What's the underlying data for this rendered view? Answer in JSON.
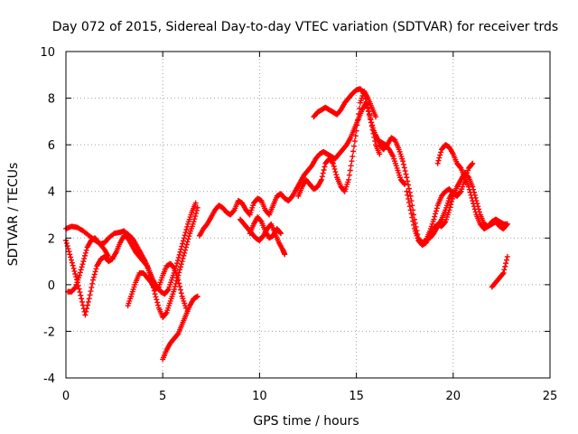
{
  "chart_data": {
    "type": "scatter",
    "title": "Day 072 of 2015, Sidereal Day-to-day VTEC variation (SDTVAR) for receiver trds",
    "xlabel": "GPS time / hours",
    "ylabel": "SDTVAR / TECUs",
    "xlim": [
      0,
      25
    ],
    "ylim": [
      -4,
      10
    ],
    "xticks": [
      0,
      5,
      10,
      15,
      20,
      25
    ],
    "yticks": [
      -4,
      -2,
      0,
      2,
      4,
      6,
      8,
      10
    ],
    "xtick_labels": [
      "0",
      "5",
      "10",
      "15",
      "20",
      "25"
    ],
    "ytick_labels": [
      "-4",
      "-2",
      "0",
      "2",
      "4",
      "6",
      "8",
      "10"
    ],
    "grid": true,
    "legend": "none",
    "marker": "plus",
    "color": "#ff0000",
    "series": [
      {
        "points": [
          [
            0.0,
            2.4
          ],
          [
            0.3,
            2.5
          ],
          [
            0.6,
            2.45
          ],
          [
            0.9,
            2.3
          ],
          [
            1.2,
            2.1
          ],
          [
            1.5,
            1.9
          ],
          [
            1.8,
            1.75
          ],
          [
            2.0,
            1.8
          ],
          [
            2.2,
            2.0
          ],
          [
            2.5,
            2.2
          ],
          [
            2.8,
            2.25
          ],
          [
            3.0,
            2.3
          ],
          [
            3.3,
            2.1
          ],
          [
            3.5,
            1.9
          ],
          [
            3.7,
            1.6
          ],
          [
            3.9,
            1.3
          ],
          [
            4.1,
            1.0
          ],
          [
            4.3,
            0.6
          ],
          [
            4.5,
            0.2
          ],
          [
            4.7,
            -0.1
          ],
          [
            4.9,
            -0.3
          ],
          [
            5.1,
            -0.4
          ],
          [
            5.3,
            -0.2
          ],
          [
            5.5,
            0.3
          ],
          [
            5.7,
            0.8
          ],
          [
            5.9,
            1.4
          ],
          [
            6.1,
            2.0
          ],
          [
            6.3,
            2.6
          ],
          [
            6.5,
            3.1
          ],
          [
            6.7,
            3.5
          ]
        ]
      },
      {
        "points": [
          [
            0.0,
            1.9
          ],
          [
            0.2,
            1.3
          ],
          [
            0.4,
            0.7
          ],
          [
            0.6,
            0.1
          ],
          [
            0.8,
            -0.6
          ],
          [
            1.0,
            -1.3
          ],
          [
            1.2,
            -0.6
          ],
          [
            1.4,
            0.2
          ],
          [
            1.6,
            0.8
          ],
          [
            1.8,
            1.1
          ],
          [
            2.0,
            1.2
          ],
          [
            2.2,
            1.0
          ],
          [
            2.4,
            1.1
          ],
          [
            2.6,
            1.4
          ],
          [
            2.8,
            1.8
          ],
          [
            3.0,
            2.1
          ],
          [
            3.2,
            2.0
          ],
          [
            3.4,
            1.7
          ],
          [
            3.6,
            1.4
          ],
          [
            3.8,
            1.2
          ],
          [
            4.0,
            1.0
          ],
          [
            4.2,
            0.8
          ],
          [
            4.4,
            0.3
          ],
          [
            4.6,
            -0.4
          ],
          [
            4.8,
            -1.0
          ],
          [
            5.0,
            -1.4
          ],
          [
            5.2,
            -1.2
          ],
          [
            5.4,
            -0.7
          ],
          [
            5.6,
            -0.2
          ],
          [
            5.8,
            0.4
          ],
          [
            6.0,
            1.0
          ],
          [
            6.2,
            1.6
          ],
          [
            6.4,
            2.2
          ],
          [
            6.6,
            2.7
          ],
          [
            6.8,
            3.3
          ]
        ]
      },
      {
        "points": [
          [
            0.1,
            -0.3
          ],
          [
            0.3,
            -0.3
          ],
          [
            0.5,
            -0.1
          ],
          [
            0.7,
            0.4
          ],
          [
            0.9,
            1.0
          ],
          [
            1.1,
            1.6
          ],
          [
            1.3,
            1.9
          ],
          [
            1.5,
            2.0
          ],
          [
            1.7,
            1.8
          ],
          [
            2.0,
            1.5
          ],
          [
            2.2,
            1.2
          ]
        ]
      },
      {
        "points": [
          [
            3.2,
            -0.9
          ],
          [
            3.4,
            -0.4
          ],
          [
            3.6,
            0.1
          ],
          [
            3.8,
            0.5
          ],
          [
            4.0,
            0.5
          ],
          [
            4.2,
            0.3
          ],
          [
            4.4,
            0.1
          ],
          [
            4.6,
            -0.2
          ],
          [
            4.8,
            -0.1
          ],
          [
            5.0,
            0.4
          ],
          [
            5.2,
            0.8
          ],
          [
            5.4,
            0.9
          ],
          [
            5.6,
            0.7
          ],
          [
            5.8,
            0.2
          ],
          [
            6.0,
            -0.5
          ],
          [
            6.2,
            -1.0
          ]
        ]
      },
      {
        "points": [
          [
            5.0,
            -3.2
          ],
          [
            5.2,
            -2.8
          ],
          [
            5.4,
            -2.5
          ],
          [
            5.6,
            -2.3
          ],
          [
            5.8,
            -2.1
          ],
          [
            6.0,
            -1.7
          ],
          [
            6.2,
            -1.3
          ],
          [
            6.4,
            -0.9
          ],
          [
            6.6,
            -0.6
          ],
          [
            6.8,
            -0.5
          ]
        ]
      },
      {
        "points": [
          [
            6.9,
            2.1
          ],
          [
            7.1,
            2.4
          ],
          [
            7.3,
            2.6
          ],
          [
            7.5,
            2.9
          ],
          [
            7.7,
            3.2
          ],
          [
            7.9,
            3.4
          ],
          [
            8.1,
            3.3
          ],
          [
            8.3,
            3.1
          ],
          [
            8.5,
            3.0
          ],
          [
            8.7,
            3.2
          ],
          [
            8.9,
            3.6
          ],
          [
            9.1,
            3.5
          ],
          [
            9.3,
            3.2
          ],
          [
            9.5,
            3.0
          ],
          [
            9.7,
            3.5
          ],
          [
            9.9,
            3.7
          ],
          [
            10.1,
            3.6
          ],
          [
            10.3,
            3.2
          ],
          [
            10.5,
            3.0
          ],
          [
            10.7,
            3.4
          ],
          [
            10.9,
            3.8
          ],
          [
            11.1,
            3.9
          ],
          [
            11.3,
            3.7
          ],
          [
            11.5,
            3.6
          ],
          [
            11.7,
            3.8
          ],
          [
            11.9,
            4.1
          ],
          [
            12.1,
            4.4
          ],
          [
            12.3,
            4.7
          ],
          [
            12.5,
            4.9
          ],
          [
            12.7,
            5.1
          ],
          [
            12.9,
            5.4
          ],
          [
            13.1,
            5.6
          ],
          [
            13.3,
            5.7
          ],
          [
            13.5,
            5.6
          ],
          [
            13.7,
            5.5
          ],
          [
            13.9,
            5.4
          ],
          [
            14.1,
            5.6
          ],
          [
            14.3,
            5.8
          ],
          [
            14.5,
            6.0
          ],
          [
            14.7,
            6.3
          ],
          [
            14.9,
            6.7
          ],
          [
            15.1,
            7.1
          ],
          [
            15.3,
            7.5
          ],
          [
            15.5,
            7.8
          ],
          [
            15.7,
            7.2
          ],
          [
            15.9,
            6.6
          ],
          [
            16.1,
            6.2
          ],
          [
            16.3,
            6.1
          ],
          [
            16.5,
            6.0
          ],
          [
            16.7,
            5.8
          ],
          [
            16.9,
            5.5
          ],
          [
            17.1,
            5.0
          ],
          [
            17.3,
            4.5
          ],
          [
            17.5,
            4.3
          ]
        ]
      },
      {
        "points": [
          [
            9.0,
            2.8
          ],
          [
            9.2,
            2.6
          ],
          [
            9.4,
            2.4
          ],
          [
            9.6,
            2.2
          ],
          [
            9.8,
            2.0
          ],
          [
            10.0,
            1.9
          ],
          [
            10.2,
            2.1
          ],
          [
            10.4,
            2.4
          ],
          [
            10.6,
            2.6
          ],
          [
            10.8,
            2.2
          ],
          [
            11.0,
            1.8
          ],
          [
            11.2,
            1.5
          ],
          [
            11.3,
            1.3
          ]
        ]
      },
      {
        "points": [
          [
            9.5,
            2.2
          ],
          [
            9.7,
            2.6
          ],
          [
            9.9,
            2.9
          ],
          [
            10.1,
            2.7
          ],
          [
            10.3,
            2.3
          ],
          [
            10.5,
            2.0
          ],
          [
            10.7,
            2.1
          ],
          [
            10.9,
            2.4
          ],
          [
            11.1,
            2.2
          ]
        ]
      },
      {
        "points": [
          [
            12.0,
            3.8
          ],
          [
            12.2,
            4.2
          ],
          [
            12.4,
            4.5
          ],
          [
            12.6,
            4.3
          ],
          [
            12.8,
            4.1
          ],
          [
            13.0,
            4.2
          ],
          [
            13.2,
            4.5
          ],
          [
            13.4,
            5.2
          ],
          [
            13.6,
            5.4
          ],
          [
            13.8,
            5.2
          ],
          [
            14.0,
            4.6
          ],
          [
            14.2,
            4.2
          ],
          [
            14.4,
            4.0
          ],
          [
            14.6,
            4.5
          ],
          [
            14.8,
            5.5
          ],
          [
            15.0,
            6.6
          ],
          [
            15.2,
            7.8
          ],
          [
            15.4,
            8.3
          ],
          [
            15.6,
            8.0
          ],
          [
            15.8,
            7.6
          ],
          [
            16.0,
            7.2
          ]
        ]
      },
      {
        "points": [
          [
            12.8,
            7.2
          ],
          [
            13.0,
            7.4
          ],
          [
            13.2,
            7.5
          ],
          [
            13.4,
            7.6
          ],
          [
            13.6,
            7.5
          ],
          [
            13.8,
            7.4
          ],
          [
            14.0,
            7.3
          ],
          [
            14.2,
            7.5
          ],
          [
            14.4,
            7.8
          ],
          [
            14.6,
            8.0
          ],
          [
            14.8,
            8.2
          ],
          [
            15.0,
            8.35
          ],
          [
            15.2,
            8.4
          ],
          [
            15.4,
            8.2
          ],
          [
            15.6,
            7.6
          ],
          [
            15.8,
            6.8
          ],
          [
            16.0,
            6.0
          ],
          [
            16.2,
            5.6
          ]
        ]
      },
      {
        "points": [
          [
            16.0,
            6.4
          ],
          [
            16.2,
            6.0
          ],
          [
            16.4,
            5.8
          ],
          [
            16.6,
            6.0
          ],
          [
            16.8,
            6.3
          ],
          [
            17.0,
            6.2
          ],
          [
            17.2,
            5.8
          ],
          [
            17.4,
            5.3
          ],
          [
            17.6,
            4.6
          ],
          [
            17.8,
            3.8
          ],
          [
            18.0,
            2.8
          ],
          [
            18.2,
            2.0
          ],
          [
            18.4,
            1.8
          ],
          [
            18.6,
            1.9
          ],
          [
            18.8,
            2.3
          ],
          [
            19.0,
            2.8
          ],
          [
            19.2,
            3.4
          ],
          [
            19.4,
            3.8
          ],
          [
            19.6,
            4.0
          ],
          [
            19.8,
            4.1
          ],
          [
            20.0,
            3.9
          ],
          [
            20.2,
            3.8
          ],
          [
            20.4,
            4.0
          ],
          [
            20.6,
            4.5
          ],
          [
            20.8,
            5.0
          ],
          [
            21.0,
            5.2
          ]
        ]
      },
      {
        "points": [
          [
            17.6,
            4.0
          ],
          [
            17.8,
            3.2
          ],
          [
            18.0,
            2.4
          ],
          [
            18.2,
            1.9
          ],
          [
            18.4,
            1.7
          ],
          [
            18.6,
            1.8
          ],
          [
            18.8,
            2.1
          ],
          [
            19.0,
            2.4
          ],
          [
            19.2,
            2.6
          ],
          [
            19.4,
            2.5
          ],
          [
            19.6,
            2.7
          ],
          [
            19.8,
            3.2
          ],
          [
            20.0,
            3.8
          ],
          [
            20.2,
            4.2
          ],
          [
            20.4,
            4.5
          ],
          [
            20.6,
            4.8
          ],
          [
            20.8,
            4.6
          ],
          [
            21.0,
            4.2
          ],
          [
            21.2,
            3.6
          ],
          [
            21.4,
            3.0
          ],
          [
            21.6,
            2.6
          ],
          [
            21.8,
            2.5
          ],
          [
            22.0,
            2.7
          ],
          [
            22.2,
            2.8
          ],
          [
            22.4,
            2.7
          ],
          [
            22.6,
            2.6
          ],
          [
            22.8,
            2.6
          ]
        ]
      },
      {
        "points": [
          [
            18.8,
            2.0
          ],
          [
            19.0,
            2.2
          ],
          [
            19.2,
            2.5
          ],
          [
            19.4,
            2.8
          ],
          [
            19.6,
            3.2
          ],
          [
            19.8,
            3.7
          ],
          [
            20.0,
            4.0
          ]
        ]
      },
      {
        "points": [
          [
            19.2,
            5.2
          ],
          [
            19.4,
            5.8
          ],
          [
            19.6,
            6.0
          ],
          [
            19.8,
            5.9
          ],
          [
            20.0,
            5.6
          ],
          [
            20.2,
            5.2
          ],
          [
            20.4,
            5.0
          ],
          [
            20.6,
            4.6
          ],
          [
            20.8,
            4.2
          ],
          [
            21.0,
            3.6
          ],
          [
            21.2,
            3.0
          ],
          [
            21.4,
            2.6
          ],
          [
            21.6,
            2.4
          ],
          [
            21.8,
            2.5
          ],
          [
            22.0,
            2.6
          ],
          [
            22.2,
            2.7
          ],
          [
            22.4,
            2.5
          ],
          [
            22.6,
            2.4
          ],
          [
            22.8,
            2.6
          ]
        ]
      },
      {
        "points": [
          [
            22.0,
            -0.1
          ],
          [
            22.2,
            0.1
          ],
          [
            22.4,
            0.3
          ],
          [
            22.6,
            0.5
          ],
          [
            22.8,
            1.2
          ]
        ]
      }
    ]
  }
}
